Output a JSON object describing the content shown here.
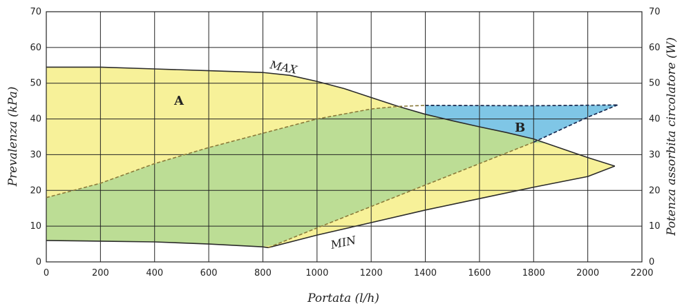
{
  "chart_data": {
    "type": "area",
    "xlabel": "Portata (l/h)",
    "ylabel_left": "Prevalenza (kPa)",
    "ylabel_right": "Potenza assorbita circolatore (W)",
    "xlim": [
      0,
      2200
    ],
    "ylim": [
      0,
      70
    ],
    "y2lim": [
      0,
      70
    ],
    "x_ticks": [
      "0",
      "200",
      "400",
      "600",
      "800",
      "1000",
      "1200",
      "1400",
      "1600",
      "1800",
      "2000",
      "2200"
    ],
    "y_ticks": [
      "0",
      "10",
      "20",
      "30",
      "40",
      "50",
      "60",
      "70"
    ],
    "y2_ticks": [
      "0",
      "10",
      "20",
      "30",
      "40",
      "50",
      "60",
      "70"
    ],
    "grid": true,
    "curve_labels": {
      "max": "MAX",
      "min": "MIN"
    },
    "zone_labels": {
      "a": "A",
      "b": "B"
    },
    "series": [
      {
        "name": "MAX",
        "x": [
          0,
          200,
          400,
          600,
          800,
          900,
          1000,
          1100,
          1200,
          1300,
          1400,
          1500,
          1600,
          1700,
          1800,
          1900,
          2000,
          2100
        ],
        "y": [
          54.5,
          54.5,
          54,
          53.5,
          53,
          52.2,
          50.5,
          48.5,
          46,
          43.5,
          41.3,
          39.5,
          37.8,
          36.2,
          34.4,
          31.8,
          29.2,
          26.8
        ]
      },
      {
        "name": "MIN",
        "x": [
          0,
          200,
          400,
          600,
          800,
          820,
          1000,
          1200,
          1400,
          1600,
          1800,
          2000,
          2100
        ],
        "y": [
          6,
          5.8,
          5.6,
          5,
          4.2,
          4,
          7.5,
          11,
          14.5,
          17.7,
          20.9,
          23.9,
          26.8
        ]
      },
      {
        "name": "",
        "x": [
          0,
          200,
          400,
          600,
          800,
          1000,
          1200,
          1300,
          1400,
          1800,
          2110
        ],
        "y": [
          18,
          22,
          27.5,
          32,
          36,
          40,
          42.8,
          43.5,
          43.8,
          43.7,
          43.9
        ]
      },
      {
        "name": "",
        "x": [
          820,
          1000,
          1200,
          1400,
          1600,
          1800,
          1900,
          2000,
          2110
        ],
        "y": [
          4,
          9.5,
          15.5,
          21.5,
          27.5,
          33.5,
          37,
          40.5,
          43.9
        ]
      }
    ],
    "colors": {
      "zone_a": "#f7f199",
      "overlap": "#bcdd95",
      "zone_b": "#7fc6e6",
      "curve": "#2a2a2a",
      "dashed": "#8a7a3a",
      "grid": "#222222"
    }
  }
}
